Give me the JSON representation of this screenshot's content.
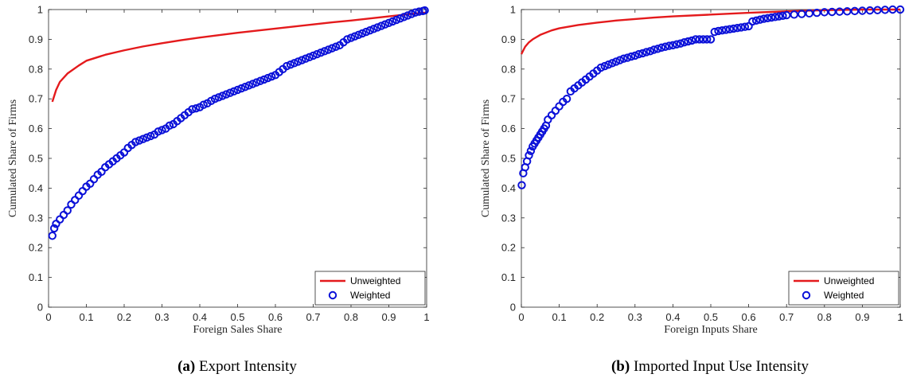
{
  "colors": {
    "unweighted": "#e41a1c",
    "weighted": "#0a10d8",
    "axis": "#262626"
  },
  "legend": {
    "unweighted": "Unweighted",
    "weighted": "Weighted",
    "placement": "bottom-right"
  },
  "chart_data": [
    {
      "type": "line",
      "caption_tag": "(a)",
      "caption_text": "Export Intensity",
      "xlabel": "Foreign Sales Share",
      "ylabel": "Cumulated Share of Firms",
      "xlim": [
        0,
        1
      ],
      "ylim": [
        0,
        1
      ],
      "xticks": [
        "0",
        "0.1",
        "0.2",
        "0.3",
        "0.4",
        "0.5",
        "0.6",
        "0.7",
        "0.8",
        "0.9",
        "1"
      ],
      "yticks": [
        "0",
        "0.1",
        "0.2",
        "0.3",
        "0.4",
        "0.5",
        "0.6",
        "0.7",
        "0.8",
        "0.9",
        "1"
      ],
      "grid": false,
      "series": [
        {
          "name": "Unweighted",
          "style": "line",
          "x": [
            0.01,
            0.02,
            0.03,
            0.05,
            0.08,
            0.1,
            0.15,
            0.2,
            0.25,
            0.3,
            0.35,
            0.4,
            0.45,
            0.5,
            0.55,
            0.6,
            0.65,
            0.7,
            0.75,
            0.8,
            0.85,
            0.9,
            0.95,
            1.0
          ],
          "y": [
            0.69,
            0.73,
            0.757,
            0.785,
            0.812,
            0.828,
            0.848,
            0.863,
            0.876,
            0.887,
            0.897,
            0.906,
            0.914,
            0.922,
            0.929,
            0.936,
            0.943,
            0.95,
            0.957,
            0.963,
            0.97,
            0.977,
            0.984,
            0.99
          ]
        },
        {
          "name": "Weighted",
          "style": "markers",
          "x": [
            0.01,
            0.015,
            0.02,
            0.03,
            0.04,
            0.05,
            0.06,
            0.07,
            0.08,
            0.09,
            0.1,
            0.11,
            0.12,
            0.13,
            0.14,
            0.15,
            0.16,
            0.17,
            0.18,
            0.19,
            0.2,
            0.21,
            0.22,
            0.23,
            0.24,
            0.25,
            0.26,
            0.27,
            0.28,
            0.29,
            0.3,
            0.31,
            0.32,
            0.33,
            0.34,
            0.35,
            0.36,
            0.37,
            0.38,
            0.39,
            0.4,
            0.41,
            0.42,
            0.43,
            0.44,
            0.45,
            0.46,
            0.47,
            0.48,
            0.49,
            0.5,
            0.51,
            0.52,
            0.53,
            0.54,
            0.55,
            0.56,
            0.57,
            0.58,
            0.59,
            0.6,
            0.61,
            0.62,
            0.63,
            0.64,
            0.65,
            0.66,
            0.67,
            0.68,
            0.69,
            0.7,
            0.71,
            0.72,
            0.73,
            0.74,
            0.75,
            0.76,
            0.77,
            0.78,
            0.79,
            0.8,
            0.81,
            0.82,
            0.83,
            0.84,
            0.85,
            0.86,
            0.87,
            0.88,
            0.89,
            0.9,
            0.91,
            0.92,
            0.93,
            0.94,
            0.95,
            0.96,
            0.97,
            0.98,
            0.99,
            0.995
          ],
          "y": [
            0.24,
            0.265,
            0.28,
            0.295,
            0.31,
            0.325,
            0.345,
            0.36,
            0.375,
            0.39,
            0.405,
            0.415,
            0.43,
            0.445,
            0.455,
            0.47,
            0.48,
            0.49,
            0.5,
            0.51,
            0.52,
            0.535,
            0.545,
            0.555,
            0.56,
            0.565,
            0.57,
            0.575,
            0.58,
            0.59,
            0.595,
            0.6,
            0.61,
            0.615,
            0.625,
            0.635,
            0.645,
            0.655,
            0.665,
            0.668,
            0.672,
            0.68,
            0.685,
            0.693,
            0.7,
            0.705,
            0.71,
            0.715,
            0.72,
            0.725,
            0.73,
            0.735,
            0.74,
            0.745,
            0.75,
            0.755,
            0.76,
            0.765,
            0.77,
            0.775,
            0.78,
            0.79,
            0.8,
            0.81,
            0.815,
            0.82,
            0.825,
            0.83,
            0.835,
            0.84,
            0.845,
            0.85,
            0.855,
            0.86,
            0.865,
            0.87,
            0.875,
            0.88,
            0.89,
            0.9,
            0.905,
            0.91,
            0.915,
            0.92,
            0.925,
            0.93,
            0.935,
            0.94,
            0.945,
            0.95,
            0.955,
            0.96,
            0.965,
            0.97,
            0.975,
            0.98,
            0.985,
            0.99,
            0.993,
            0.995,
            0.997
          ]
        }
      ]
    },
    {
      "type": "line",
      "caption_tag": "(b)",
      "caption_text": "Imported Input Use Intensity",
      "xlabel": "Foreign Inputs Share",
      "ylabel": "Cumulated Share of Firms",
      "xlim": [
        0,
        1
      ],
      "ylim": [
        0,
        1
      ],
      "xticks": [
        "0",
        "0.1",
        "0.2",
        "0.3",
        "0.4",
        "0.5",
        "0.6",
        "0.7",
        "0.8",
        "0.9",
        "1"
      ],
      "yticks": [
        "0",
        "0.1",
        "0.2",
        "0.3",
        "0.4",
        "0.5",
        "0.6",
        "0.7",
        "0.8",
        "0.9",
        "1"
      ],
      "grid": false,
      "series": [
        {
          "name": "Unweighted",
          "style": "line",
          "x": [
            0.0,
            0.01,
            0.02,
            0.03,
            0.05,
            0.08,
            0.1,
            0.15,
            0.2,
            0.25,
            0.3,
            0.35,
            0.4,
            0.5,
            0.6,
            0.7,
            0.8,
            0.9,
            1.0
          ],
          "y": [
            0.85,
            0.875,
            0.89,
            0.9,
            0.915,
            0.93,
            0.937,
            0.948,
            0.956,
            0.963,
            0.968,
            0.973,
            0.977,
            0.983,
            0.989,
            0.994,
            0.998,
            1.0,
            1.0
          ]
        },
        {
          "name": "Weighted",
          "style": "markers",
          "x": [
            0.001,
            0.005,
            0.01,
            0.015,
            0.02,
            0.025,
            0.03,
            0.035,
            0.04,
            0.045,
            0.05,
            0.055,
            0.06,
            0.065,
            0.07,
            0.08,
            0.09,
            0.1,
            0.11,
            0.12,
            0.13,
            0.14,
            0.15,
            0.16,
            0.17,
            0.18,
            0.19,
            0.2,
            0.21,
            0.22,
            0.23,
            0.24,
            0.25,
            0.26,
            0.27,
            0.28,
            0.29,
            0.3,
            0.31,
            0.32,
            0.33,
            0.34,
            0.35,
            0.36,
            0.37,
            0.38,
            0.39,
            0.4,
            0.41,
            0.42,
            0.43,
            0.44,
            0.45,
            0.46,
            0.47,
            0.48,
            0.49,
            0.5,
            0.51,
            0.52,
            0.53,
            0.54,
            0.55,
            0.56,
            0.57,
            0.58,
            0.59,
            0.6,
            0.61,
            0.62,
            0.63,
            0.64,
            0.65,
            0.66,
            0.67,
            0.68,
            0.69,
            0.7,
            0.72,
            0.74,
            0.76,
            0.78,
            0.8,
            0.82,
            0.84,
            0.86,
            0.88,
            0.9,
            0.92,
            0.94,
            0.96,
            0.98,
            1.0
          ],
          "y": [
            0.41,
            0.45,
            0.47,
            0.49,
            0.51,
            0.525,
            0.54,
            0.55,
            0.56,
            0.57,
            0.58,
            0.59,
            0.6,
            0.61,
            0.63,
            0.645,
            0.66,
            0.675,
            0.69,
            0.7,
            0.725,
            0.735,
            0.745,
            0.755,
            0.765,
            0.775,
            0.785,
            0.795,
            0.805,
            0.81,
            0.815,
            0.82,
            0.825,
            0.83,
            0.835,
            0.838,
            0.842,
            0.845,
            0.85,
            0.853,
            0.857,
            0.86,
            0.865,
            0.868,
            0.872,
            0.875,
            0.878,
            0.88,
            0.883,
            0.886,
            0.89,
            0.893,
            0.896,
            0.9,
            0.9,
            0.9,
            0.9,
            0.9,
            0.925,
            0.928,
            0.93,
            0.932,
            0.934,
            0.936,
            0.938,
            0.94,
            0.942,
            0.944,
            0.96,
            0.963,
            0.966,
            0.969,
            0.971,
            0.973,
            0.975,
            0.977,
            0.979,
            0.981,
            0.983,
            0.985,
            0.987,
            0.989,
            0.991,
            0.992,
            0.993,
            0.994,
            0.995,
            0.996,
            0.997,
            0.998,
            0.999,
            1.0,
            1.0
          ]
        }
      ]
    }
  ]
}
